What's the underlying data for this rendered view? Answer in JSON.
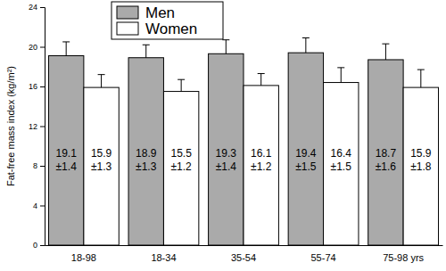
{
  "chart_data": {
    "type": "bar",
    "y_label": "Fat-free mass index (kg/m²)",
    "categories": [
      "18-98",
      "18-34",
      "35-54",
      "55-74",
      "75-98 yrs"
    ],
    "series": [
      {
        "name": "Men",
        "color": "#aaaaaa",
        "values": [
          19.1,
          18.9,
          19.3,
          19.4,
          18.7
        ],
        "errors": [
          1.4,
          1.3,
          1.4,
          1.5,
          1.6
        ],
        "error_labels": [
          "±1.4",
          "±1.3",
          "±1.4",
          "±1.5",
          "±1.6"
        ]
      },
      {
        "name": "Women",
        "color": "#ffffff",
        "values": [
          15.9,
          15.5,
          16.1,
          16.4,
          15.9
        ],
        "errors": [
          1.3,
          1.2,
          1.2,
          1.5,
          1.8
        ],
        "error_labels": [
          "±1.3",
          "±1.2",
          "±1.2",
          "±1.5",
          "±1.8"
        ]
      }
    ],
    "ylim": [
      0,
      24
    ],
    "yticks": [
      0,
      4,
      8,
      12,
      16,
      20,
      24
    ],
    "grid": false,
    "legend": "upper left",
    "data_labels": true
  }
}
